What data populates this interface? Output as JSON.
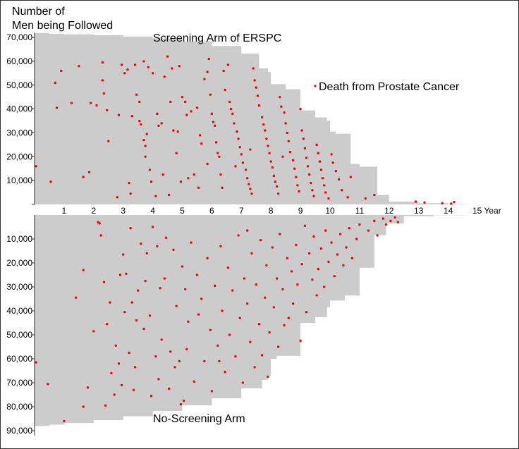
{
  "chart_data": {
    "type": "scatter",
    "ylabel": "Number of\nMen being Followed",
    "xlabel": "Year",
    "x_ticks": [
      "1",
      "2",
      "3",
      "4",
      "5",
      "6",
      "7",
      "8",
      "9",
      "10",
      "11",
      "12",
      "13",
      "14",
      "15"
    ],
    "x_unit_label": "15 Year",
    "xlim": [
      0,
      15
    ],
    "top_panel": {
      "title": "Screening Arm of ERSPC",
      "ylim": [
        0,
        72000
      ],
      "y_ticks": [
        10000,
        20000,
        30000,
        40000,
        50000,
        60000,
        70000
      ],
      "y_tick_labels": [
        "10,000",
        "20,000",
        "30,000",
        "40,000",
        "50,000",
        "60,000",
        "70,000"
      ],
      "followed_curve": [
        [
          0,
          71800
        ],
        [
          0.5,
          71500
        ],
        [
          1,
          71300
        ],
        [
          2,
          70900
        ],
        [
          3,
          70400
        ],
        [
          4,
          69600
        ],
        [
          5,
          68300
        ],
        [
          6,
          66400
        ],
        [
          7,
          63200
        ],
        [
          7.6,
          57000
        ],
        [
          7.9,
          55500
        ],
        [
          8.0,
          50400
        ],
        [
          8.5,
          48300
        ],
        [
          9.0,
          39400
        ],
        [
          9.5,
          36500
        ],
        [
          9.9,
          35000
        ],
        [
          10.0,
          30500
        ],
        [
          10.2,
          29600
        ],
        [
          10.7,
          17000
        ],
        [
          11.0,
          15800
        ],
        [
          11.6,
          3900
        ],
        [
          12.0,
          1200
        ],
        [
          13.0,
          500
        ],
        [
          14.0,
          150
        ],
        [
          14.6,
          0
        ]
      ]
    },
    "bottom_panel": {
      "title": "No-Screening Arm",
      "ylim": [
        0,
        92000
      ],
      "y_ticks": [
        10000,
        20000,
        30000,
        40000,
        50000,
        60000,
        70000,
        80000,
        90000
      ],
      "y_tick_labels": [
        "10,000",
        "20,000",
        "30,000",
        "40,000",
        "50,000",
        "60,000",
        "70,000",
        "80,000",
        "90,000"
      ],
      "followed_curve": [
        [
          0,
          88000
        ],
        [
          0.5,
          87500
        ],
        [
          1,
          86800
        ],
        [
          2,
          85600
        ],
        [
          3,
          84000
        ],
        [
          4,
          81800
        ],
        [
          5,
          79400
        ],
        [
          6,
          76500
        ],
        [
          7,
          72300
        ],
        [
          7.7,
          68800
        ],
        [
          7.9,
          67000
        ],
        [
          8.0,
          60000
        ],
        [
          8.2,
          58800
        ],
        [
          9.0,
          45000
        ],
        [
          9.5,
          42600
        ],
        [
          9.9,
          38500
        ],
        [
          10.0,
          35700
        ],
        [
          10.5,
          33600
        ],
        [
          11.0,
          22000
        ],
        [
          11.5,
          8400
        ],
        [
          11.9,
          3500
        ],
        [
          12.5,
          500
        ],
        [
          13.5,
          100
        ],
        [
          14.6,
          0
        ]
      ]
    },
    "series": [
      {
        "name": "Death from Prostate Cancer",
        "color": "#ff0000"
      }
    ],
    "legend": {
      "label": "Death from Prostate Cancer",
      "placement": "top-right"
    },
    "area_color": "#cccccc",
    "point_color": "#ff0000",
    "points_top": [
      [
        0.05,
        16000
      ],
      [
        0.55,
        9500
      ],
      [
        0.7,
        51000
      ],
      [
        0.75,
        40500
      ],
      [
        0.9,
        56000
      ],
      [
        1.25,
        42500
      ],
      [
        1.5,
        58000
      ],
      [
        1.65,
        11500
      ],
      [
        1.85,
        13500
      ],
      [
        1.9,
        42500
      ],
      [
        2.1,
        41500
      ],
      [
        2.3,
        59500
      ],
      [
        2.3,
        52000
      ],
      [
        2.35,
        46500
      ],
      [
        2.45,
        39500
      ],
      [
        2.5,
        26500
      ],
      [
        2.8,
        3000
      ],
      [
        2.85,
        37500
      ],
      [
        2.95,
        58500
      ],
      [
        3.05,
        55000
      ],
      [
        3.15,
        56500
      ],
      [
        3.2,
        9000
      ],
      [
        3.25,
        4500
      ],
      [
        3.3,
        37000
      ],
      [
        3.4,
        58500
      ],
      [
        3.45,
        46000
      ],
      [
        3.55,
        43000
      ],
      [
        3.55,
        35000
      ],
      [
        3.6,
        33500
      ],
      [
        3.7,
        60000
      ],
      [
        3.7,
        27000
      ],
      [
        3.75,
        20000
      ],
      [
        3.75,
        24500
      ],
      [
        3.8,
        29500
      ],
      [
        3.85,
        57500
      ],
      [
        3.9,
        14500
      ],
      [
        3.95,
        9500
      ],
      [
        4.0,
        55000
      ],
      [
        4.1,
        3500
      ],
      [
        4.15,
        38000
      ],
      [
        4.2,
        33000
      ],
      [
        4.3,
        34000
      ],
      [
        4.35,
        12500
      ],
      [
        4.4,
        53500
      ],
      [
        4.5,
        62000
      ],
      [
        4.55,
        4000
      ],
      [
        4.6,
        43000
      ],
      [
        4.65,
        57000
      ],
      [
        4.7,
        31000
      ],
      [
        4.8,
        21500
      ],
      [
        4.85,
        30500
      ],
      [
        4.9,
        58000
      ],
      [
        4.95,
        9500
      ],
      [
        5.0,
        45000
      ],
      [
        5.1,
        43000
      ],
      [
        5.15,
        37500
      ],
      [
        5.2,
        11000
      ],
      [
        5.3,
        39000
      ],
      [
        5.4,
        12500
      ],
      [
        5.5,
        40500
      ],
      [
        5.6,
        29000
      ],
      [
        5.65,
        25500
      ],
      [
        5.75,
        52500
      ],
      [
        5.85,
        55500
      ],
      [
        5.9,
        61000
      ],
      [
        5.95,
        46000
      ],
      [
        6.0,
        38000
      ],
      [
        6.05,
        34500
      ],
      [
        6.1,
        33000
      ],
      [
        6.15,
        26000
      ],
      [
        6.2,
        21500
      ],
      [
        6.25,
        20000
      ],
      [
        6.3,
        12500
      ],
      [
        6.35,
        7000
      ],
      [
        6.4,
        56000
      ],
      [
        6.45,
        48000
      ],
      [
        6.55,
        58500
      ],
      [
        6.6,
        43000
      ],
      [
        6.65,
        40000
      ],
      [
        6.7,
        38000
      ],
      [
        6.75,
        34000
      ],
      [
        6.85,
        30500
      ],
      [
        6.9,
        27500
      ],
      [
        6.95,
        24000
      ],
      [
        7.0,
        21000
      ],
      [
        7.05,
        17500
      ],
      [
        7.15,
        14500
      ],
      [
        7.2,
        11000
      ],
      [
        7.25,
        8500
      ],
      [
        7.3,
        6500
      ],
      [
        7.35,
        4500
      ],
      [
        7.4,
        57000
      ],
      [
        7.45,
        52000
      ],
      [
        7.5,
        49000
      ],
      [
        7.55,
        45500
      ],
      [
        7.6,
        41500
      ],
      [
        7.7,
        36500
      ],
      [
        7.75,
        33500
      ],
      [
        7.8,
        31000
      ],
      [
        7.85,
        27500
      ],
      [
        7.9,
        24500
      ],
      [
        7.95,
        21500
      ],
      [
        8.0,
        18000
      ],
      [
        8.05,
        15500
      ],
      [
        8.1,
        12000
      ],
      [
        8.15,
        9500
      ],
      [
        8.2,
        7500
      ],
      [
        8.25,
        4500
      ],
      [
        8.3,
        45000
      ],
      [
        8.35,
        41000
      ],
      [
        8.45,
        38500
      ],
      [
        8.5,
        34000
      ],
      [
        8.55,
        30000
      ],
      [
        8.6,
        26500
      ],
      [
        8.65,
        22000
      ],
      [
        8.75,
        18500
      ],
      [
        8.8,
        15000
      ],
      [
        8.85,
        11500
      ],
      [
        8.9,
        8000
      ],
      [
        8.95,
        5500
      ],
      [
        9.05,
        31000
      ],
      [
        9.1,
        27500
      ],
      [
        9.15,
        23500
      ],
      [
        9.2,
        19500
      ],
      [
        9.25,
        16000
      ],
      [
        9.3,
        12500
      ],
      [
        9.35,
        9000
      ],
      [
        9.4,
        6000
      ],
      [
        9.45,
        3500
      ],
      [
        9.55,
        25000
      ],
      [
        9.6,
        21500
      ],
      [
        9.65,
        18000
      ],
      [
        9.7,
        14500
      ],
      [
        9.75,
        11000
      ],
      [
        9.8,
        8000
      ],
      [
        9.85,
        5000
      ],
      [
        9.95,
        2500
      ],
      [
        10.05,
        21000
      ],
      [
        10.1,
        17500
      ],
      [
        10.2,
        14000
      ],
      [
        10.3,
        10500
      ],
      [
        10.4,
        6000
      ],
      [
        10.6,
        3000
      ],
      [
        10.7,
        11500
      ],
      [
        11.2,
        2500
      ],
      [
        11.5,
        4000
      ],
      [
        12.9,
        1200
      ],
      [
        13.2,
        800
      ],
      [
        13.8,
        500
      ],
      [
        14.1,
        300
      ],
      [
        14.2,
        1000
      ],
      [
        5.55,
        7000
      ],
      [
        5.85,
        17000
      ],
      [
        6.8,
        16000
      ],
      [
        7.3,
        23000
      ],
      [
        8.4,
        20000
      ],
      [
        9.0,
        40000
      ]
    ],
    "points_bottom": [
      [
        0.05,
        61500
      ],
      [
        0.45,
        70500
      ],
      [
        1.0,
        86000
      ],
      [
        1.4,
        34500
      ],
      [
        1.65,
        80000
      ],
      [
        1.65,
        23000
      ],
      [
        1.8,
        72000
      ],
      [
        2.0,
        48500
      ],
      [
        2.15,
        3000
      ],
      [
        2.2,
        3500
      ],
      [
        2.25,
        8500
      ],
      [
        2.35,
        28000
      ],
      [
        2.4,
        79500
      ],
      [
        2.45,
        45500
      ],
      [
        2.55,
        36500
      ],
      [
        2.6,
        66000
      ],
      [
        2.7,
        75000
      ],
      [
        2.75,
        54500
      ],
      [
        2.85,
        62000
      ],
      [
        2.9,
        25000
      ],
      [
        2.95,
        71000
      ],
      [
        3.0,
        16500
      ],
      [
        3.05,
        40500
      ],
      [
        3.1,
        24500
      ],
      [
        3.2,
        57500
      ],
      [
        3.25,
        5500
      ],
      [
        3.3,
        36500
      ],
      [
        3.35,
        73000
      ],
      [
        3.4,
        63500
      ],
      [
        3.5,
        31500
      ],
      [
        3.6,
        12000
      ],
      [
        3.7,
        47500
      ],
      [
        3.75,
        27500
      ],
      [
        3.8,
        16000
      ],
      [
        3.9,
        42000
      ],
      [
        3.95,
        75500
      ],
      [
        4.0,
        5000
      ],
      [
        4.1,
        59000
      ],
      [
        4.15,
        13000
      ],
      [
        4.2,
        68500
      ],
      [
        4.25,
        30500
      ],
      [
        4.3,
        52000
      ],
      [
        4.4,
        26500
      ],
      [
        4.45,
        9500
      ],
      [
        4.55,
        72500
      ],
      [
        4.6,
        57000
      ],
      [
        4.7,
        14500
      ],
      [
        4.8,
        38000
      ],
      [
        4.9,
        61000
      ],
      [
        4.95,
        79000
      ],
      [
        5.0,
        21500
      ],
      [
        5.1,
        31000
      ],
      [
        5.15,
        56000
      ],
      [
        5.2,
        44500
      ],
      [
        5.3,
        11500
      ],
      [
        5.4,
        69500
      ],
      [
        5.5,
        25000
      ],
      [
        5.55,
        41500
      ],
      [
        5.65,
        35000
      ],
      [
        5.75,
        61000
      ],
      [
        5.85,
        18000
      ],
      [
        5.95,
        48000
      ],
      [
        6.0,
        73500
      ],
      [
        6.1,
        29500
      ],
      [
        6.2,
        54500
      ],
      [
        6.3,
        13000
      ],
      [
        6.35,
        40000
      ],
      [
        6.45,
        65500
      ],
      [
        6.55,
        22000
      ],
      [
        6.6,
        50000
      ],
      [
        6.7,
        31500
      ],
      [
        6.8,
        59000
      ],
      [
        6.9,
        8500
      ],
      [
        6.95,
        43000
      ],
      [
        7.05,
        70000
      ],
      [
        7.1,
        26500
      ],
      [
        7.2,
        37000
      ],
      [
        7.3,
        53000
      ],
      [
        7.35,
        16000
      ],
      [
        7.45,
        63500
      ],
      [
        7.5,
        29000
      ],
      [
        7.6,
        45500
      ],
      [
        7.65,
        10500
      ],
      [
        7.7,
        58500
      ],
      [
        7.8,
        34500
      ],
      [
        7.85,
        21000
      ],
      [
        7.9,
        67500
      ],
      [
        7.95,
        49000
      ],
      [
        8.05,
        13500
      ],
      [
        8.1,
        38500
      ],
      [
        8.2,
        26500
      ],
      [
        8.25,
        55000
      ],
      [
        8.3,
        8000
      ],
      [
        8.4,
        31000
      ],
      [
        8.45,
        46000
      ],
      [
        8.55,
        18000
      ],
      [
        8.6,
        43000
      ],
      [
        8.7,
        23500
      ],
      [
        8.75,
        37000
      ],
      [
        8.85,
        12500
      ],
      [
        8.9,
        29000
      ],
      [
        9.0,
        52500
      ],
      [
        9.05,
        20500
      ],
      [
        9.15,
        4500
      ],
      [
        9.2,
        40500
      ],
      [
        9.3,
        16000
      ],
      [
        9.4,
        27000
      ],
      [
        9.45,
        9000
      ],
      [
        9.55,
        33500
      ],
      [
        9.6,
        22500
      ],
      [
        9.7,
        14000
      ],
      [
        9.8,
        30000
      ],
      [
        9.85,
        6500
      ],
      [
        9.95,
        19500
      ],
      [
        10.05,
        11500
      ],
      [
        10.15,
        25500
      ],
      [
        10.25,
        16500
      ],
      [
        10.35,
        8000
      ],
      [
        10.45,
        21000
      ],
      [
        10.55,
        13500
      ],
      [
        10.65,
        5500
      ],
      [
        10.75,
        18000
      ],
      [
        10.9,
        10000
      ],
      [
        11.0,
        4000
      ],
      [
        11.3,
        6500
      ],
      [
        11.5,
        2500
      ],
      [
        11.6,
        8500
      ],
      [
        11.8,
        1500
      ],
      [
        11.9,
        4000
      ],
      [
        12.05,
        2500
      ],
      [
        12.2,
        1000
      ],
      [
        12.3,
        3000
      ],
      [
        7.2,
        6500
      ],
      [
        6.25,
        61000
      ],
      [
        5.05,
        77500
      ],
      [
        4.75,
        63500
      ],
      [
        3.45,
        44000
      ]
    ]
  }
}
